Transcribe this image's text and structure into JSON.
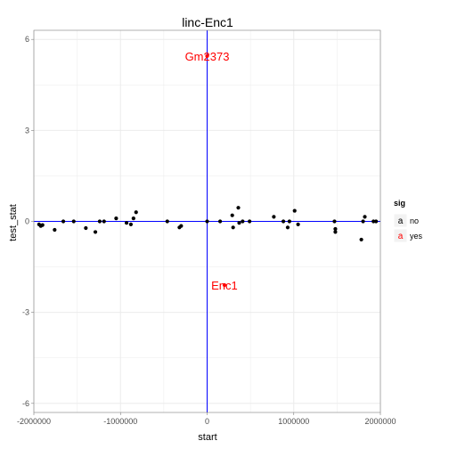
{
  "chart_data": {
    "type": "scatter",
    "title": "linc-Enc1",
    "xlabel": "start",
    "ylabel": "test_stat",
    "xlim": [
      -2000000,
      2000000
    ],
    "ylim": [
      -6.3,
      6.3
    ],
    "xticks": [
      -2000000,
      -1000000,
      0,
      1000000,
      2000000
    ],
    "xtick_labels": [
      "-2000000",
      "-1000000",
      "0",
      "1000000",
      "2000000"
    ],
    "yticks": [
      -6,
      -3,
      0,
      3,
      6
    ],
    "ytick_labels": [
      "-6",
      "-3",
      "0",
      "3",
      "6"
    ],
    "grid": true,
    "background": "#ffffff",
    "grid_color": "#ebebeb",
    "vline_x": 0,
    "hline_y": 0,
    "reference_line_color": "#0000ff",
    "legend": {
      "title": "sig",
      "position": "right",
      "entries": [
        {
          "label": "no",
          "key_glyph": "a",
          "color": "#000000"
        },
        {
          "label": "yes",
          "key_glyph": "a",
          "color": "#ff0000"
        }
      ]
    },
    "series": [
      {
        "name": "no",
        "color": "#000000",
        "points": [
          [
            -1940000,
            -0.1
          ],
          [
            -1920000,
            -0.15
          ],
          [
            -1900000,
            -0.12
          ],
          [
            -1760000,
            -0.28
          ],
          [
            -1660000,
            0.0
          ],
          [
            -1540000,
            0.0
          ],
          [
            -1400000,
            -0.22
          ],
          [
            -1290000,
            -0.35
          ],
          [
            -1240000,
            0.0
          ],
          [
            -1190000,
            0.0
          ],
          [
            -1050000,
            0.1
          ],
          [
            -930000,
            -0.05
          ],
          [
            -880000,
            -0.1
          ],
          [
            -850000,
            0.1
          ],
          [
            -820000,
            0.3
          ],
          [
            -460000,
            0.0
          ],
          [
            -320000,
            -0.2
          ],
          [
            -300000,
            -0.15
          ],
          [
            0,
            0.0
          ],
          [
            150000,
            0.0
          ],
          [
            290000,
            0.2
          ],
          [
            300000,
            -0.2
          ],
          [
            360000,
            0.45
          ],
          [
            370000,
            -0.05
          ],
          [
            410000,
            0.0
          ],
          [
            490000,
            0.0
          ],
          [
            770000,
            0.15
          ],
          [
            880000,
            0.0
          ],
          [
            930000,
            -0.2
          ],
          [
            950000,
            0.0
          ],
          [
            1010000,
            0.35
          ],
          [
            1050000,
            -0.1
          ],
          [
            1470000,
            0.0
          ],
          [
            1480000,
            -0.25
          ],
          [
            1480000,
            -0.35
          ],
          [
            1780000,
            -0.6
          ],
          [
            1800000,
            0.0
          ],
          [
            1820000,
            0.15
          ],
          [
            1920000,
            0.0
          ],
          [
            1950000,
            0.0
          ]
        ]
      },
      {
        "name": "yes",
        "color": "#ff0000",
        "points": [
          [
            0,
            5.45
          ],
          [
            200000,
            -2.1
          ]
        ]
      }
    ],
    "annotations": [
      {
        "text": "Gm2373",
        "x": 0,
        "y": 5.45,
        "color": "#ff0000"
      },
      {
        "text": "Enc1",
        "x": 200000,
        "y": -2.1,
        "color": "#ff0000"
      }
    ]
  }
}
